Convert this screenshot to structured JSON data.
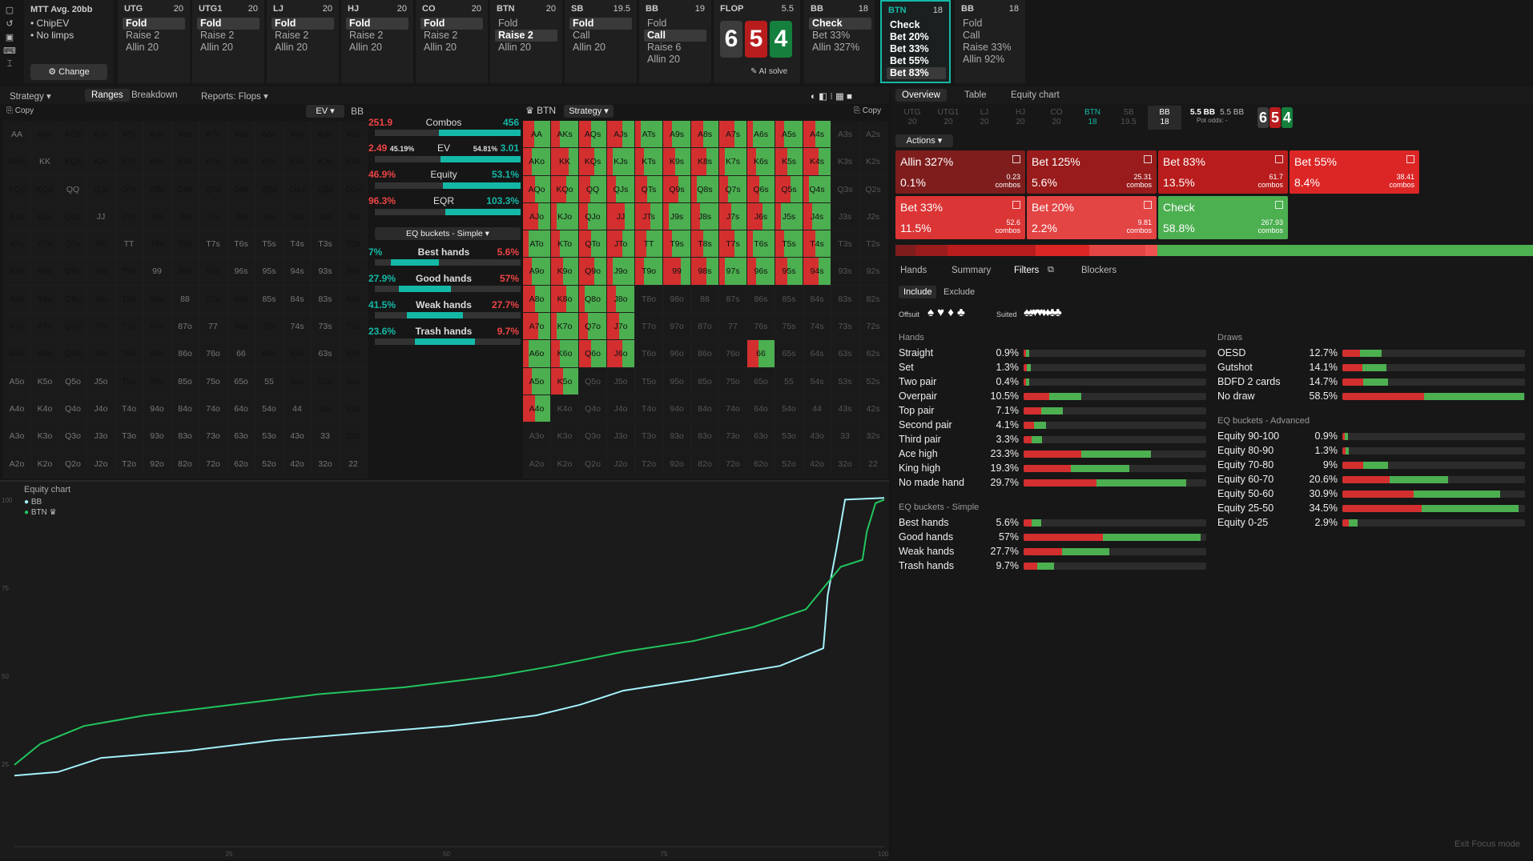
{
  "top": {
    "mtt": {
      "title": "MTT  Avg. 20bb",
      "opts": [
        "• ChipEV",
        "• No limps"
      ],
      "change": "⚙ Change"
    },
    "positions": [
      {
        "name": "UTG",
        "stack": "20",
        "actions": [
          "Fold",
          "Raise 2",
          "Allin 20"
        ],
        "sel": 0
      },
      {
        "name": "UTG1",
        "stack": "20",
        "actions": [
          "Fold",
          "Raise 2",
          "Allin 20"
        ],
        "sel": 0
      },
      {
        "name": "LJ",
        "stack": "20",
        "actions": [
          "Fold",
          "Raise 2",
          "Allin 20"
        ],
        "sel": 0
      },
      {
        "name": "HJ",
        "stack": "20",
        "actions": [
          "Fold",
          "Raise 2",
          "Allin 20"
        ],
        "sel": 0
      },
      {
        "name": "CO",
        "stack": "20",
        "actions": [
          "Fold",
          "Raise 2",
          "Allin 20"
        ],
        "sel": 0
      },
      {
        "name": "BTN",
        "stack": "20",
        "actions": [
          "Fold",
          "Raise 2",
          "Allin 20"
        ],
        "sel": 1
      },
      {
        "name": "SB",
        "stack": "19.5",
        "actions": [
          "Fold",
          "Call",
          "Allin 20"
        ],
        "sel": 0
      },
      {
        "name": "BB",
        "stack": "19",
        "actions": [
          "Fold",
          "Call",
          "Raise 6",
          "Allin 20"
        ],
        "sel": 1
      }
    ],
    "flop": {
      "name": "FLOP",
      "pot": "5.5",
      "cards": [
        "6",
        "5",
        "4"
      ],
      "ai": "✎ AI solve"
    },
    "post": [
      {
        "name": "BB",
        "stack": "18",
        "actions": [
          "Check",
          "Bet 33%",
          "Allin 327%"
        ],
        "sel": 0
      },
      {
        "name": "BTN",
        "stack": "18",
        "actions": [
          "Check",
          "Bet 20%",
          "Bet 33%",
          "Bet 55%",
          "Bet 83%"
        ],
        "sel": 4
      },
      {
        "name": "BB",
        "stack": "18",
        "actions": [
          "Fold",
          "Call",
          "Raise 33%",
          "Allin 92%"
        ],
        "sel": -1
      }
    ]
  },
  "tabs": {
    "strategy": "Strategy ▾",
    "ranges": "Ranges",
    "breakdown": "Breakdown",
    "reports": "Reports: Flops ▾"
  },
  "left": {
    "copy": "⎘ Copy",
    "ev": "EV ▾",
    "player": "BB"
  },
  "mid": {
    "combos": {
      "l": "251.9",
      "c": "Combos",
      "r": "456"
    },
    "ev": {
      "l": "2.49",
      "ls": "45.19%",
      "c": "EV",
      "rs": "54.81%",
      "r": "3.01"
    },
    "equity": {
      "l": "46.9%",
      "c": "Equity",
      "r": "53.1%"
    },
    "eqr": {
      "l": "96.3%",
      "c": "EQR",
      "r": "103.3%"
    },
    "select": "EQ buckets - Simple ▾",
    "buckets": [
      {
        "l": "7%",
        "c": "Best hands",
        "r": "5.6%"
      },
      {
        "l": "27.9%",
        "c": "Good hands",
        "r": "57%"
      },
      {
        "l": "41.5%",
        "c": "Weak hands",
        "r": "27.7%"
      },
      {
        "l": "23.6%",
        "c": "Trash hands",
        "r": "9.7%"
      }
    ]
  },
  "strat": {
    "player": "♛ BTN",
    "mode": "Strategy ▾",
    "copy": "⎘ Copy"
  },
  "eqchart": {
    "title": "Equity chart",
    "legend": [
      "BB",
      "BTN ♛"
    ],
    "yt": [
      "100",
      "75",
      "50",
      "25"
    ],
    "xt": [
      "25",
      "50",
      "75",
      "100"
    ]
  },
  "right": {
    "tabs": [
      "Overview",
      "Table",
      "Equity chart"
    ],
    "seats": [
      {
        "n": "UTG",
        "s": "20"
      },
      {
        "n": "UTG1",
        "s": "20"
      },
      {
        "n": "LJ",
        "s": "20"
      },
      {
        "n": "HJ",
        "s": "20"
      },
      {
        "n": "CO",
        "s": "20"
      },
      {
        "n": "BTN",
        "s": "18"
      },
      {
        "n": "SB",
        "s": "19.5"
      },
      {
        "n": "BB",
        "s": "18"
      }
    ],
    "pot": "5.5 BB",
    "potsub": "5.5 BB",
    "potodds": "Pot odds: -",
    "actions_label": "Actions ▾",
    "cards": [
      {
        "n": "Allin 327%",
        "p": "0.1%",
        "c": "0.23\ncombos",
        "bg": "#7f1d1d"
      },
      {
        "n": "Bet 125%",
        "p": "5.6%",
        "c": "25.31\ncombos",
        "bg": "#991b1b"
      },
      {
        "n": "Bet 83%",
        "p": "13.5%",
        "c": "61.7\ncombos",
        "bg": "#b91c1c"
      },
      {
        "n": "Bet 55%",
        "p": "8.4%",
        "c": "38.41\ncombos",
        "bg": "#dc2626"
      },
      {
        "n": "Bet 33%",
        "p": "11.5%",
        "c": "52.6\ncombos",
        "bg": "#dc3535"
      },
      {
        "n": "Bet 20%",
        "p": "2.2%",
        "c": "9.81\ncombos",
        "bg": "#e34444"
      },
      {
        "n": "Check",
        "p": "58.8%",
        "c": "267.93\ncombos",
        "bg": "#4caf50"
      }
    ],
    "subtabs": [
      "Hands",
      "Summary",
      "Filters",
      "Blockers"
    ],
    "include": "Include",
    "exclude": "Exclude",
    "offsuit": "Offsuit",
    "suited": "Suited",
    "exit": "Exit Focus mode",
    "hands_title": "Hands",
    "hands": [
      [
        "Straight",
        "0.9%"
      ],
      [
        "Set",
        "1.3%"
      ],
      [
        "Two pair",
        "0.4%"
      ],
      [
        "Overpair",
        "10.5%"
      ],
      [
        "Top pair",
        "7.1%"
      ],
      [
        "Second pair",
        "4.1%"
      ],
      [
        "Third pair",
        "3.3%"
      ],
      [
        "Ace high",
        "23.3%"
      ],
      [
        "King high",
        "19.3%"
      ],
      [
        "No made hand",
        "29.7%"
      ]
    ],
    "eqs_title": "EQ buckets - Simple",
    "eqs": [
      [
        "Best hands",
        "5.6%"
      ],
      [
        "Good hands",
        "57%"
      ],
      [
        "Weak hands",
        "27.7%"
      ],
      [
        "Trash hands",
        "9.7%"
      ]
    ],
    "draws_title": "Draws",
    "draws": [
      [
        "OESD",
        "12.7%"
      ],
      [
        "Gutshot",
        "14.1%"
      ],
      [
        "BDFD 2 cards",
        "14.7%"
      ],
      [
        "No draw",
        "58.5%"
      ]
    ],
    "eqa_title": "EQ buckets - Advanced",
    "eqa": [
      [
        "Equity 90-100",
        "0.9%"
      ],
      [
        "Equity 80-90",
        "1.3%"
      ],
      [
        "Equity 70-80",
        "9%"
      ],
      [
        "Equity 60-70",
        "20.6%"
      ],
      [
        "Equity 50-60",
        "30.9%"
      ],
      [
        "Equity 25-50",
        "34.5%"
      ],
      [
        "Equity 0-25",
        "2.9%"
      ]
    ]
  }
}
